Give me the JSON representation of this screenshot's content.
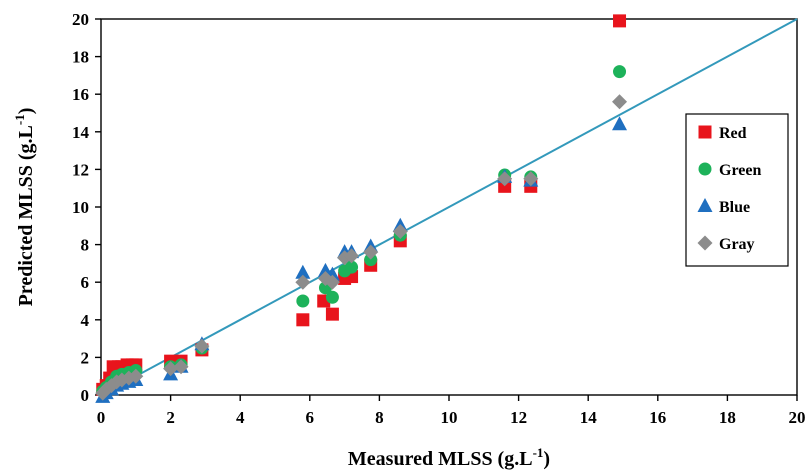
{
  "chart_data": {
    "type": "scatter",
    "xlabel": "Measured MLSS (g.L",
    "xlabel_sup": "-1",
    "xlabel_close": ")",
    "ylabel": "Predicted MLSS (g.L",
    "ylabel_sup": "-1",
    "ylabel_close": ")",
    "xlim": [
      0,
      20
    ],
    "ylim": [
      0,
      20
    ],
    "xticks": [
      "0",
      "2",
      "4",
      "6",
      "8",
      "10",
      "12",
      "14",
      "16",
      "18",
      "20"
    ],
    "yticks": [
      "0",
      "2",
      "4",
      "6",
      "8",
      "10",
      "12",
      "14",
      "16",
      "18",
      "20"
    ],
    "grid": false,
    "legend_position": "right",
    "reference_line": {
      "from": [
        0,
        0
      ],
      "to": [
        20,
        20
      ],
      "color": "#3399bb"
    },
    "series": [
      {
        "name": "Red",
        "marker": "square",
        "color": "#e8141c",
        "points": [
          [
            0.05,
            0.3
          ],
          [
            0.15,
            0.5
          ],
          [
            0.25,
            0.9
          ],
          [
            0.35,
            1.5
          ],
          [
            0.5,
            1.5
          ],
          [
            0.6,
            1.5
          ],
          [
            0.75,
            1.6
          ],
          [
            0.9,
            1.6
          ],
          [
            1.0,
            1.6
          ],
          [
            2.0,
            1.8
          ],
          [
            2.3,
            1.8
          ],
          [
            2.9,
            2.4
          ],
          [
            5.8,
            4.0
          ],
          [
            6.4,
            5.0
          ],
          [
            6.65,
            4.3
          ],
          [
            7.0,
            6.2
          ],
          [
            7.2,
            6.3
          ],
          [
            7.75,
            6.9
          ],
          [
            8.6,
            8.2
          ],
          [
            11.6,
            11.1
          ],
          [
            12.35,
            11.1
          ],
          [
            14.9,
            19.9
          ]
        ]
      },
      {
        "name": "Green",
        "marker": "circle",
        "color": "#1db25a",
        "points": [
          [
            0.05,
            0.2
          ],
          [
            0.15,
            0.4
          ],
          [
            0.3,
            0.7
          ],
          [
            0.45,
            1.0
          ],
          [
            0.6,
            1.1
          ],
          [
            0.8,
            1.2
          ],
          [
            1.0,
            1.3
          ],
          [
            2.0,
            1.5
          ],
          [
            2.3,
            1.6
          ],
          [
            2.9,
            2.5
          ],
          [
            5.8,
            5.0
          ],
          [
            6.45,
            5.7
          ],
          [
            6.65,
            5.2
          ],
          [
            7.0,
            6.6
          ],
          [
            7.2,
            6.8
          ],
          [
            7.75,
            7.2
          ],
          [
            8.6,
            8.5
          ],
          [
            11.6,
            11.7
          ],
          [
            12.35,
            11.6
          ],
          [
            14.9,
            17.2
          ]
        ]
      },
      {
        "name": "Blue",
        "marker": "triangle",
        "color": "#1f6fc0",
        "points": [
          [
            0.05,
            -0.1
          ],
          [
            0.15,
            0.1
          ],
          [
            0.3,
            0.3
          ],
          [
            0.45,
            0.5
          ],
          [
            0.6,
            0.6
          ],
          [
            0.8,
            0.7
          ],
          [
            1.0,
            0.8
          ],
          [
            2.0,
            1.1
          ],
          [
            2.3,
            1.5
          ],
          [
            2.9,
            2.7
          ],
          [
            5.8,
            6.5
          ],
          [
            6.45,
            6.6
          ],
          [
            6.65,
            6.4
          ],
          [
            7.0,
            7.6
          ],
          [
            7.2,
            7.6
          ],
          [
            7.75,
            7.9
          ],
          [
            8.6,
            9.0
          ],
          [
            11.6,
            11.6
          ],
          [
            12.35,
            11.4
          ],
          [
            14.9,
            14.4
          ]
        ]
      },
      {
        "name": "Gray",
        "marker": "diamond",
        "color": "#8c8c8c",
        "points": [
          [
            0.05,
            0.1
          ],
          [
            0.15,
            0.3
          ],
          [
            0.3,
            0.5
          ],
          [
            0.45,
            0.7
          ],
          [
            0.6,
            0.8
          ],
          [
            0.8,
            0.9
          ],
          [
            1.0,
            1.0
          ],
          [
            2.0,
            1.4
          ],
          [
            2.3,
            1.5
          ],
          [
            2.9,
            2.6
          ],
          [
            5.8,
            6.0
          ],
          [
            6.45,
            6.2
          ],
          [
            6.65,
            6.0
          ],
          [
            7.0,
            7.3
          ],
          [
            7.2,
            7.4
          ],
          [
            7.75,
            7.6
          ],
          [
            8.6,
            8.7
          ],
          [
            11.6,
            11.5
          ],
          [
            12.35,
            11.5
          ],
          [
            14.9,
            15.6
          ]
        ]
      }
    ]
  }
}
